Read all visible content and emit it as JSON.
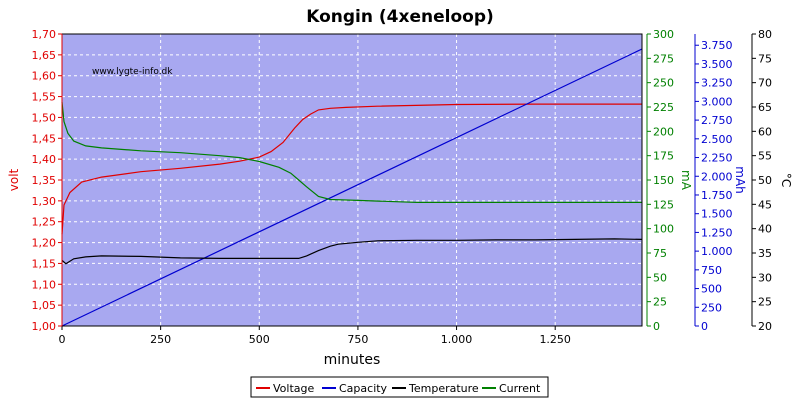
{
  "chart_data": {
    "type": "line",
    "title": "Kongin (4xeneloop)",
    "watermark": "www.lygte-info.dk",
    "xlabel": "minutes",
    "xlim": [
      0,
      1470
    ],
    "x_ticks": [
      0,
      250,
      500,
      750,
      1000,
      1250
    ],
    "x_tick_labels": [
      "0",
      "250",
      "500",
      "750",
      "1.000",
      "1.250"
    ],
    "grid": true,
    "plot_background": "#a8a8f0",
    "legend_position": "bottom-center",
    "axes": {
      "volt": {
        "label": "volt",
        "color": "#e00000",
        "range": [
          1.0,
          1.7
        ],
        "ticks": [
          1.0,
          1.05,
          1.1,
          1.15,
          1.2,
          1.25,
          1.3,
          1.35,
          1.4,
          1.45,
          1.5,
          1.55,
          1.6,
          1.65,
          1.7
        ],
        "tick_labels": [
          "1,00",
          "1,05",
          "1,10",
          "1,15",
          "1,20",
          "1,25",
          "1,30",
          "1,35",
          "1,40",
          "1,45",
          "1,50",
          "1,55",
          "1,60",
          "1,65",
          "1,70"
        ]
      },
      "mA": {
        "label": "mA",
        "color": "#008000",
        "range": [
          0,
          300
        ],
        "ticks": [
          0,
          25,
          50,
          75,
          100,
          125,
          150,
          175,
          200,
          225,
          250,
          275,
          300
        ],
        "tick_labels": [
          "0",
          "25",
          "50",
          "75",
          "100",
          "125",
          "150",
          "175",
          "200",
          "225",
          "250",
          "275",
          "300"
        ]
      },
      "mAh": {
        "label": "mAh",
        "color": "#0000d0",
        "range": [
          0,
          3900
        ],
        "ticks": [
          0,
          250,
          500,
          750,
          1000,
          1250,
          1500,
          1750,
          2000,
          2250,
          2500,
          2750,
          3000,
          3250,
          3500,
          3750
        ],
        "tick_labels": [
          "0",
          "250",
          "500",
          "750",
          "1.000",
          "1.250",
          "1.500",
          "1.750",
          "2.000",
          "2.250",
          "2.500",
          "2.750",
          "3.000",
          "3.250",
          "3.500",
          "3.750"
        ]
      },
      "celsius": {
        "label": "°C",
        "color": "#000000",
        "range": [
          20,
          80
        ],
        "ticks": [
          20,
          25,
          30,
          35,
          40,
          45,
          50,
          55,
          60,
          65,
          70,
          75,
          80
        ],
        "tick_labels": [
          "20",
          "25",
          "30",
          "35",
          "40",
          "45",
          "50",
          "55",
          "60",
          "65",
          "70",
          "75",
          "80"
        ]
      }
    },
    "series": [
      {
        "name": "Voltage",
        "axis": "volt",
        "color": "#e00000",
        "x": [
          0,
          5,
          20,
          50,
          100,
          200,
          300,
          400,
          450,
          500,
          530,
          560,
          590,
          610,
          630,
          650,
          680,
          720,
          800,
          1000,
          1200,
          1470
        ],
        "y": [
          1.22,
          1.29,
          1.32,
          1.345,
          1.357,
          1.37,
          1.378,
          1.388,
          1.395,
          1.405,
          1.418,
          1.44,
          1.475,
          1.495,
          1.508,
          1.518,
          1.522,
          1.524,
          1.527,
          1.531,
          1.532,
          1.532
        ]
      },
      {
        "name": "Capacity",
        "axis": "mAh",
        "color": "#0000d0",
        "x": [
          0,
          1470
        ],
        "y": [
          0,
          3700
        ]
      },
      {
        "name": "Temperature",
        "axis": "celsius",
        "color": "#000000",
        "x": [
          0,
          10,
          30,
          60,
          100,
          200,
          300,
          400,
          500,
          600,
          620,
          650,
          680,
          700,
          750,
          800,
          900,
          1000,
          1100,
          1200,
          1300,
          1400,
          1470
        ],
        "y": [
          33.5,
          32.8,
          33.8,
          34.2,
          34.4,
          34.3,
          34.0,
          33.9,
          33.9,
          33.9,
          34.4,
          35.5,
          36.4,
          36.8,
          37.2,
          37.5,
          37.6,
          37.6,
          37.7,
          37.7,
          37.8,
          37.9,
          37.8
        ]
      },
      {
        "name": "Current",
        "axis": "mA",
        "color": "#008000",
        "x": [
          0,
          5,
          15,
          30,
          60,
          100,
          200,
          300,
          400,
          450,
          500,
          550,
          580,
          600,
          620,
          650,
          680,
          750,
          900,
          1000,
          1200,
          1470
        ],
        "y": [
          230,
          210,
          198,
          190,
          185,
          183,
          180,
          178,
          175,
          173,
          169,
          163,
          157,
          150,
          143,
          133,
          130,
          129,
          127,
          127,
          127,
          127
        ]
      }
    ]
  },
  "legend": {
    "items": [
      {
        "label": "Voltage",
        "color": "#e00000"
      },
      {
        "label": "Capacity",
        "color": "#0000d0"
      },
      {
        "label": "Temperature",
        "color": "#000000"
      },
      {
        "label": "Current",
        "color": "#008000"
      }
    ]
  }
}
